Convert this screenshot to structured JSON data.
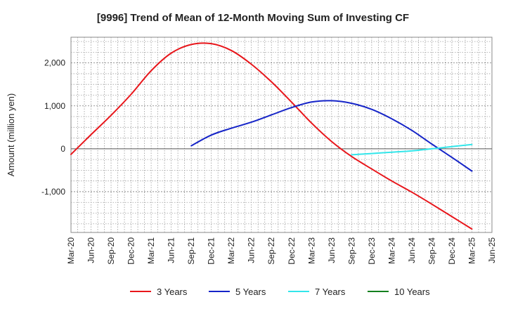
{
  "chart_data": {
    "type": "line",
    "title": "[9996]  Trend of Mean of 12-Month Moving Sum of Investing CF",
    "ylabel": "Amount (million yen)",
    "xlabel": "",
    "ylim": [
      -1950,
      2600
    ],
    "y_ticks": [
      -1000,
      0,
      1000,
      2000
    ],
    "y_tick_labels": [
      "-1,000",
      "0",
      "1,000",
      "2,000"
    ],
    "x_range": [
      "Mar-20",
      "Jun-25"
    ],
    "x_tick_labels": [
      "Mar-20",
      "Jun-20",
      "Sep-20",
      "Dec-20",
      "Mar-21",
      "Jun-21",
      "Sep-21",
      "Dec-21",
      "Mar-22",
      "Jun-22",
      "Sep-22",
      "Dec-22",
      "Mar-23",
      "Jun-23",
      "Sep-23",
      "Dec-23",
      "Mar-24",
      "Jun-24",
      "Sep-24",
      "Dec-24",
      "Mar-25",
      "Jun-25"
    ],
    "grid": true,
    "legend_position": "bottom",
    "colors": {
      "3 Years": "#e8161b",
      "5 Years": "#1524c8",
      "7 Years": "#33e6ea",
      "10 Years": "#14801e"
    },
    "series": [
      {
        "name": "3 Years",
        "x": [
          "Mar-20",
          "Jun-20",
          "Sep-20",
          "Dec-20",
          "Mar-21",
          "Jun-21",
          "Sep-21",
          "Dec-21",
          "Mar-22",
          "Jun-22",
          "Sep-22",
          "Dec-22",
          "Mar-23",
          "Jun-23",
          "Sep-23",
          "Dec-23",
          "Mar-24",
          "Jun-24",
          "Sep-24",
          "Dec-24",
          "Mar-25"
        ],
        "values": [
          -130,
          330,
          780,
          1270,
          1820,
          2230,
          2430,
          2450,
          2290,
          1970,
          1560,
          1090,
          600,
          170,
          -180,
          -470,
          -750,
          -1010,
          -1290,
          -1580,
          -1870
        ]
      },
      {
        "name": "5 Years",
        "x": [
          "Sep-21",
          "Dec-21",
          "Mar-22",
          "Jun-22",
          "Sep-22",
          "Dec-22",
          "Mar-23",
          "Jun-23",
          "Sep-23",
          "Dec-23",
          "Mar-24",
          "Jun-24",
          "Sep-24",
          "Dec-24",
          "Mar-25"
        ],
        "values": [
          70,
          320,
          480,
          620,
          790,
          960,
          1090,
          1120,
          1060,
          920,
          700,
          430,
          110,
          -200,
          -520
        ]
      },
      {
        "name": "7 Years",
        "x": [
          "Sep-23",
          "Dec-23",
          "Mar-24",
          "Jun-24",
          "Sep-24",
          "Dec-24",
          "Mar-25"
        ],
        "values": [
          -140,
          -110,
          -80,
          -50,
          0,
          50,
          100
        ]
      },
      {
        "name": "10 Years",
        "x": [],
        "values": []
      }
    ]
  }
}
